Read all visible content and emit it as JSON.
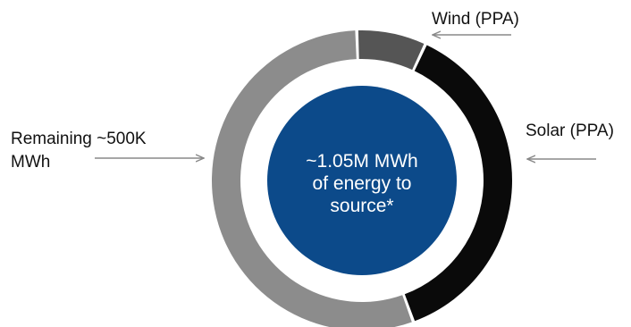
{
  "chart_data": {
    "type": "pie",
    "style": "donut",
    "slices": [
      {
        "label": "Wind (PPA)",
        "share": 0.075,
        "color": "#555555"
      },
      {
        "label": "Solar (PPA)",
        "share": 0.375,
        "color": "#0a0a0a"
      },
      {
        "label_lines": [
          "Remaining ~500K",
          "MWh"
        ],
        "share": 0.55,
        "color": "#8c8c8c"
      }
    ],
    "center_lines": [
      "~1.05M MWh",
      "of energy to",
      "source*"
    ],
    "center_color": "#0c4a8a",
    "arrow_color": "#888888"
  }
}
